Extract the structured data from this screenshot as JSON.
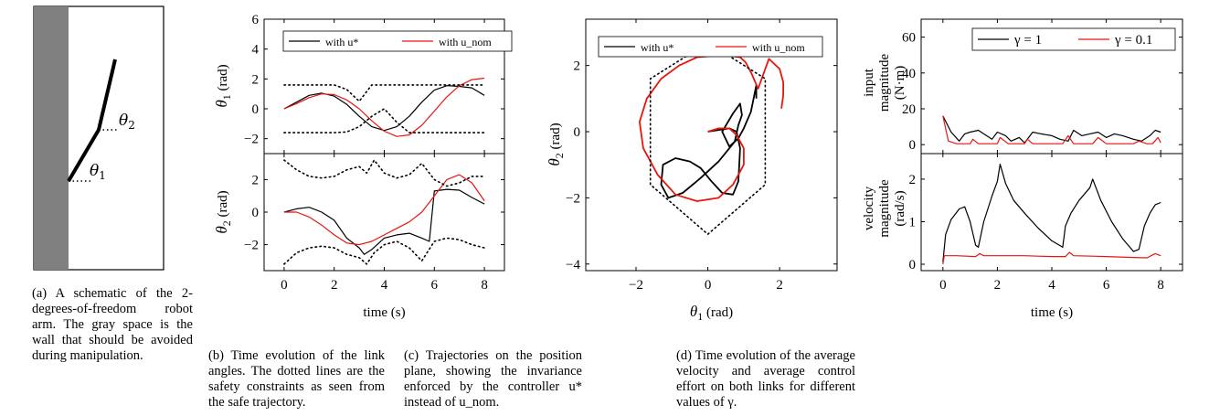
{
  "panel_a": {
    "labels": {
      "theta1": "θ1",
      "theta2": "θ2"
    },
    "caption": "(a) A schematic of the 2-degrees-of-freedom robot arm. The gray space is the wall that should be avoided during manipulation.",
    "colors": {
      "wall": "#808080"
    }
  },
  "panel_b": {
    "caption": "(b) Time evolution of the link angles. The dotted lines are the safety constraints as seen from the safe trajectory.",
    "legend": {
      "ustar": "with u*",
      "unom": "with u_nom"
    }
  },
  "panel_c": {
    "caption": "(c) Trajectories on the position plane, showing the invariance enforced by the controller u* instead of u_nom.",
    "legend": {
      "ustar": "with u*",
      "unom": "with u_nom"
    }
  },
  "panel_d": {
    "caption": "(d) Time evolution of the average velocity and average control effort on both links for different values of γ.",
    "legend": {
      "g1": "γ = 1",
      "g01": "γ = 0.1"
    }
  },
  "colors": {
    "black": "#000000",
    "red": "#e8150f"
  },
  "chart_data": [
    {
      "type": "line",
      "id": "b_top",
      "xlabel": "",
      "ylabel": "θ1 (rad)",
      "xlim": [
        -0.8,
        8.8
      ],
      "ylim": [
        -3,
        6
      ],
      "xticks": [
        0,
        2,
        4,
        6,
        8
      ],
      "yticks": [
        -2,
        0,
        2,
        4,
        6
      ],
      "series": [
        {
          "name": "with u*",
          "color": "#000000",
          "style": "solid",
          "x": [
            0,
            0.5,
            1,
            1.5,
            2,
            2.5,
            3,
            3.5,
            4,
            4.5,
            5,
            5.5,
            6,
            6.5,
            7,
            7.5,
            8
          ],
          "y": [
            0,
            0.45,
            0.9,
            1.05,
            0.85,
            0.3,
            -0.5,
            -1.2,
            -1.45,
            -1.2,
            -0.5,
            0.45,
            1.25,
            1.55,
            1.5,
            1.4,
            0.9
          ]
        },
        {
          "name": "with u_nom",
          "color": "#e8150f",
          "style": "solid",
          "x": [
            0,
            0.5,
            1,
            1.5,
            2,
            2.5,
            3,
            3.5,
            4,
            4.5,
            5,
            5.5,
            6,
            6.5,
            7,
            7.5,
            8
          ],
          "y": [
            0,
            0.35,
            0.75,
            1.0,
            0.95,
            0.6,
            0.0,
            -0.8,
            -1.5,
            -1.85,
            -1.75,
            -1.1,
            -0.15,
            0.8,
            1.55,
            1.95,
            2.05
          ]
        },
        {
          "name": "",
          "color": "#000000",
          "style": "dotted",
          "x": [
            0,
            2,
            2.5,
            3,
            3.5,
            6,
            8
          ],
          "y": [
            1.6,
            1.6,
            1.3,
            0.5,
            1.6,
            1.6,
            1.6
          ]
        },
        {
          "name": "",
          "color": "#000000",
          "style": "dotted",
          "x": [
            0,
            2,
            2.5,
            3,
            3.5,
            4,
            4.5,
            5,
            6,
            8
          ],
          "y": [
            -1.6,
            -1.6,
            -1.55,
            -1.2,
            -0.5,
            0.0,
            -0.9,
            -1.6,
            -1.6,
            -1.6
          ]
        }
      ]
    },
    {
      "type": "line",
      "id": "b_bottom",
      "xlabel": "time (s)",
      "ylabel": "θ2 (rad)",
      "xlim": [
        -0.8,
        8.8
      ],
      "ylim": [
        -3.6,
        3.6
      ],
      "xticks": [
        0,
        2,
        4,
        6,
        8
      ],
      "yticks": [
        -2,
        0,
        2
      ],
      "series": [
        {
          "name": "with u*",
          "color": "#000000",
          "style": "solid",
          "x": [
            0,
            0.5,
            1,
            1.5,
            2,
            2.5,
            3,
            3.2,
            3.5,
            4,
            4.5,
            5,
            5.5,
            5.8,
            6,
            6.5,
            7,
            7.5,
            8
          ],
          "y": [
            0,
            0.2,
            0.3,
            0.0,
            -0.5,
            -1.6,
            -2.2,
            -2.6,
            -2.3,
            -1.6,
            -1.4,
            -1.3,
            -1.6,
            -1.8,
            1.3,
            1.4,
            1.35,
            0.9,
            0.5
          ]
        },
        {
          "name": "with u_nom",
          "color": "#e8150f",
          "style": "solid",
          "x": [
            0,
            0.5,
            1,
            1.5,
            2,
            2.5,
            3,
            3.5,
            4,
            4.5,
            5,
            5.5,
            6,
            6.5,
            7,
            7.5,
            8
          ],
          "y": [
            0,
            0.0,
            -0.3,
            -0.8,
            -1.4,
            -1.9,
            -2.0,
            -1.8,
            -1.4,
            -1.0,
            -0.6,
            0.0,
            1.0,
            2.0,
            2.3,
            1.8,
            0.7
          ]
        },
        {
          "name": "",
          "color": "#000000",
          "style": "dotted",
          "x": [
            0,
            0.5,
            1,
            1.5,
            2,
            2.5,
            3,
            3.3,
            3.6,
            4,
            4.5,
            5,
            5.5,
            6,
            6.5,
            7,
            7.5,
            8
          ],
          "y": [
            3.2,
            2.6,
            2.2,
            2.1,
            2.2,
            2.6,
            2.8,
            2.4,
            3.2,
            2.4,
            2.1,
            2.3,
            3.0,
            2.0,
            1.6,
            1.8,
            2.2,
            2.2
          ]
        },
        {
          "name": "",
          "color": "#000000",
          "style": "dotted",
          "x": [
            0,
            0.5,
            1,
            1.5,
            2,
            2.5,
            3,
            3.3,
            3.6,
            4,
            4.5,
            5,
            5.5,
            6,
            6.5,
            7,
            7.5,
            8
          ],
          "y": [
            -3.2,
            -2.5,
            -2.2,
            -2.1,
            -2.2,
            -2.6,
            -2.8,
            -3.2,
            -2.5,
            -2.0,
            -1.8,
            -2.2,
            -3.0,
            -1.8,
            -1.6,
            -1.7,
            -2.0,
            -2.2
          ]
        }
      ]
    },
    {
      "type": "line",
      "id": "c",
      "xlabel": "θ1 (rad)",
      "ylabel": "θ2 (rad)",
      "xlim": [
        -3.4,
        3.6
      ],
      "ylim": [
        -4.2,
        3.4
      ],
      "xticks": [
        -2,
        0,
        2
      ],
      "yticks": [
        -4,
        -2,
        0,
        2
      ],
      "series": [
        {
          "name": "with u*",
          "color": "#000000",
          "style": "solid",
          "x": [
            1.35,
            1.35,
            1.2,
            1.0,
            0.85,
            0.6,
            0.4,
            0.7,
            0.9,
            0.95,
            0.85,
            0.75,
            0.3,
            -0.2,
            -0.7,
            -1.1,
            -1.3,
            -1.25,
            -0.9,
            -0.5,
            -0.2,
            0.1,
            0.4,
            0.7,
            0.85,
            0.9,
            0.8,
            0.6,
            0.0
          ],
          "y": [
            1.0,
            1.4,
            0.6,
            0.1,
            -0.2,
            -0.45,
            0.0,
            0.55,
            0.85,
            0.5,
            0.2,
            -0.3,
            -0.9,
            -1.4,
            -1.85,
            -2.0,
            -1.6,
            -1.0,
            -0.8,
            -0.9,
            -1.1,
            -1.5,
            -1.85,
            -1.9,
            -1.5,
            -0.5,
            0.0,
            0.1,
            0.0
          ]
        },
        {
          "name": "with u_nom",
          "color": "#e8150f",
          "style": "solid",
          "x": [
            0.0,
            0.3,
            0.6,
            0.8,
            1.0,
            1.0,
            0.7,
            0.3,
            -0.3,
            -0.9,
            -1.4,
            -1.8,
            -1.9,
            -1.7,
            -1.3,
            -0.8,
            -0.3,
            0.2,
            0.6,
            0.9,
            1.05,
            1.2,
            1.4,
            1.7,
            2.0,
            2.1,
            2.1,
            2.05
          ],
          "y": [
            0.0,
            0.1,
            0.1,
            -0.1,
            -0.5,
            -1.0,
            -1.6,
            -2.0,
            -2.1,
            -1.9,
            -1.3,
            -0.5,
            0.3,
            1.0,
            1.6,
            2.0,
            2.25,
            2.3,
            2.3,
            2.25,
            2.1,
            1.8,
            1.3,
            2.2,
            1.9,
            1.5,
            1.1,
            0.7
          ]
        },
        {
          "name": "",
          "color": "#000000",
          "style": "dotted",
          "x": [
            -0.5,
            -1.6,
            -1.6,
            0.0,
            1.6,
            1.6,
            0.5
          ],
          "y": [
            2.35,
            1.6,
            -1.6,
            -3.1,
            -1.6,
            1.6,
            2.35
          ]
        }
      ]
    },
    {
      "type": "line",
      "id": "d_top",
      "xlabel": "",
      "ylabel": "input magnitude (N·m)",
      "xlim": [
        -0.8,
        8.8
      ],
      "ylim": [
        -5,
        70
      ],
      "xticks": [
        0,
        2,
        4,
        6,
        8
      ],
      "yticks": [
        0,
        20,
        40,
        60
      ],
      "series": [
        {
          "name": "γ = 1",
          "color": "#000000",
          "style": "solid",
          "x": [
            0,
            0.3,
            0.6,
            0.8,
            1.0,
            1.3,
            1.5,
            1.8,
            2.0,
            2.3,
            2.5,
            2.8,
            3.0,
            3.3,
            3.6,
            4.0,
            4.3,
            4.6,
            4.8,
            5.1,
            5.4,
            5.7,
            6.0,
            6.3,
            6.6,
            7.0,
            7.3,
            7.6,
            7.8,
            8.0
          ],
          "y": [
            16,
            7,
            2,
            6,
            7,
            8,
            6,
            3,
            7,
            5,
            2,
            4,
            1,
            7,
            6,
            5,
            3,
            2,
            8,
            5,
            6,
            7,
            4,
            6,
            5,
            3,
            2,
            5,
            8,
            7
          ]
        },
        {
          "name": "γ = 0.1",
          "color": "#e8150f",
          "style": "solid",
          "x": [
            0,
            0.2,
            0.5,
            1.0,
            1.1,
            1.3,
            1.5,
            2.0,
            2.1,
            2.4,
            3.0,
            3.1,
            3.3,
            4.0,
            4.4,
            4.6,
            4.8,
            5.5,
            5.7,
            6.0,
            7.0,
            7.2,
            7.5,
            7.7,
            7.9,
            8.0
          ],
          "y": [
            16,
            2,
            0.5,
            0.5,
            3,
            0.5,
            0.5,
            0.5,
            4,
            0.5,
            0.5,
            3,
            0.5,
            0.5,
            0.5,
            5,
            0.5,
            0.5,
            4,
            0.5,
            0.5,
            2,
            0.5,
            0.5,
            4,
            1
          ]
        }
      ]
    },
    {
      "type": "line",
      "id": "d_bottom",
      "xlabel": "time (s)",
      "ylabel": "velocity magnitude (rad/s)",
      "xlim": [
        -0.8,
        8.8
      ],
      "ylim": [
        -0.15,
        2.6
      ],
      "xticks": [
        0,
        2,
        4,
        6,
        8
      ],
      "yticks": [
        0,
        1,
        2
      ],
      "series": [
        {
          "name": "γ = 1",
          "color": "#000000",
          "style": "solid",
          "x": [
            0,
            0.1,
            0.3,
            0.6,
            0.8,
            1.0,
            1.2,
            1.3,
            1.5,
            1.8,
            2.0,
            2.1,
            2.3,
            2.6,
            3.0,
            3.5,
            4.0,
            4.4,
            4.5,
            4.7,
            5.0,
            5.4,
            5.5,
            5.8,
            6.2,
            6.6,
            7.0,
            7.2,
            7.4,
            7.6,
            7.8,
            8.0
          ],
          "y": [
            0.05,
            0.7,
            1.05,
            1.3,
            1.35,
            1.0,
            0.45,
            0.4,
            1.0,
            1.6,
            1.95,
            2.35,
            1.9,
            1.5,
            1.2,
            0.85,
            0.55,
            0.4,
            0.9,
            1.2,
            1.5,
            1.8,
            2.0,
            1.5,
            1.0,
            0.6,
            0.3,
            0.35,
            0.9,
            1.2,
            1.4,
            1.45
          ]
        },
        {
          "name": "γ = 0.1",
          "color": "#e8150f",
          "style": "solid",
          "x": [
            0,
            0.05,
            0.5,
            1.2,
            1.35,
            1.5,
            2.0,
            2.5,
            3.0,
            3.5,
            4.0,
            4.5,
            4.65,
            4.8,
            5.5,
            6.0,
            6.5,
            7.0,
            7.5,
            7.7,
            7.8,
            8.0
          ],
          "y": [
            0.0,
            0.2,
            0.2,
            0.18,
            0.25,
            0.2,
            0.2,
            0.2,
            0.2,
            0.19,
            0.18,
            0.18,
            0.28,
            0.2,
            0.19,
            0.18,
            0.17,
            0.16,
            0.15,
            0.22,
            0.25,
            0.2
          ]
        }
      ]
    }
  ]
}
